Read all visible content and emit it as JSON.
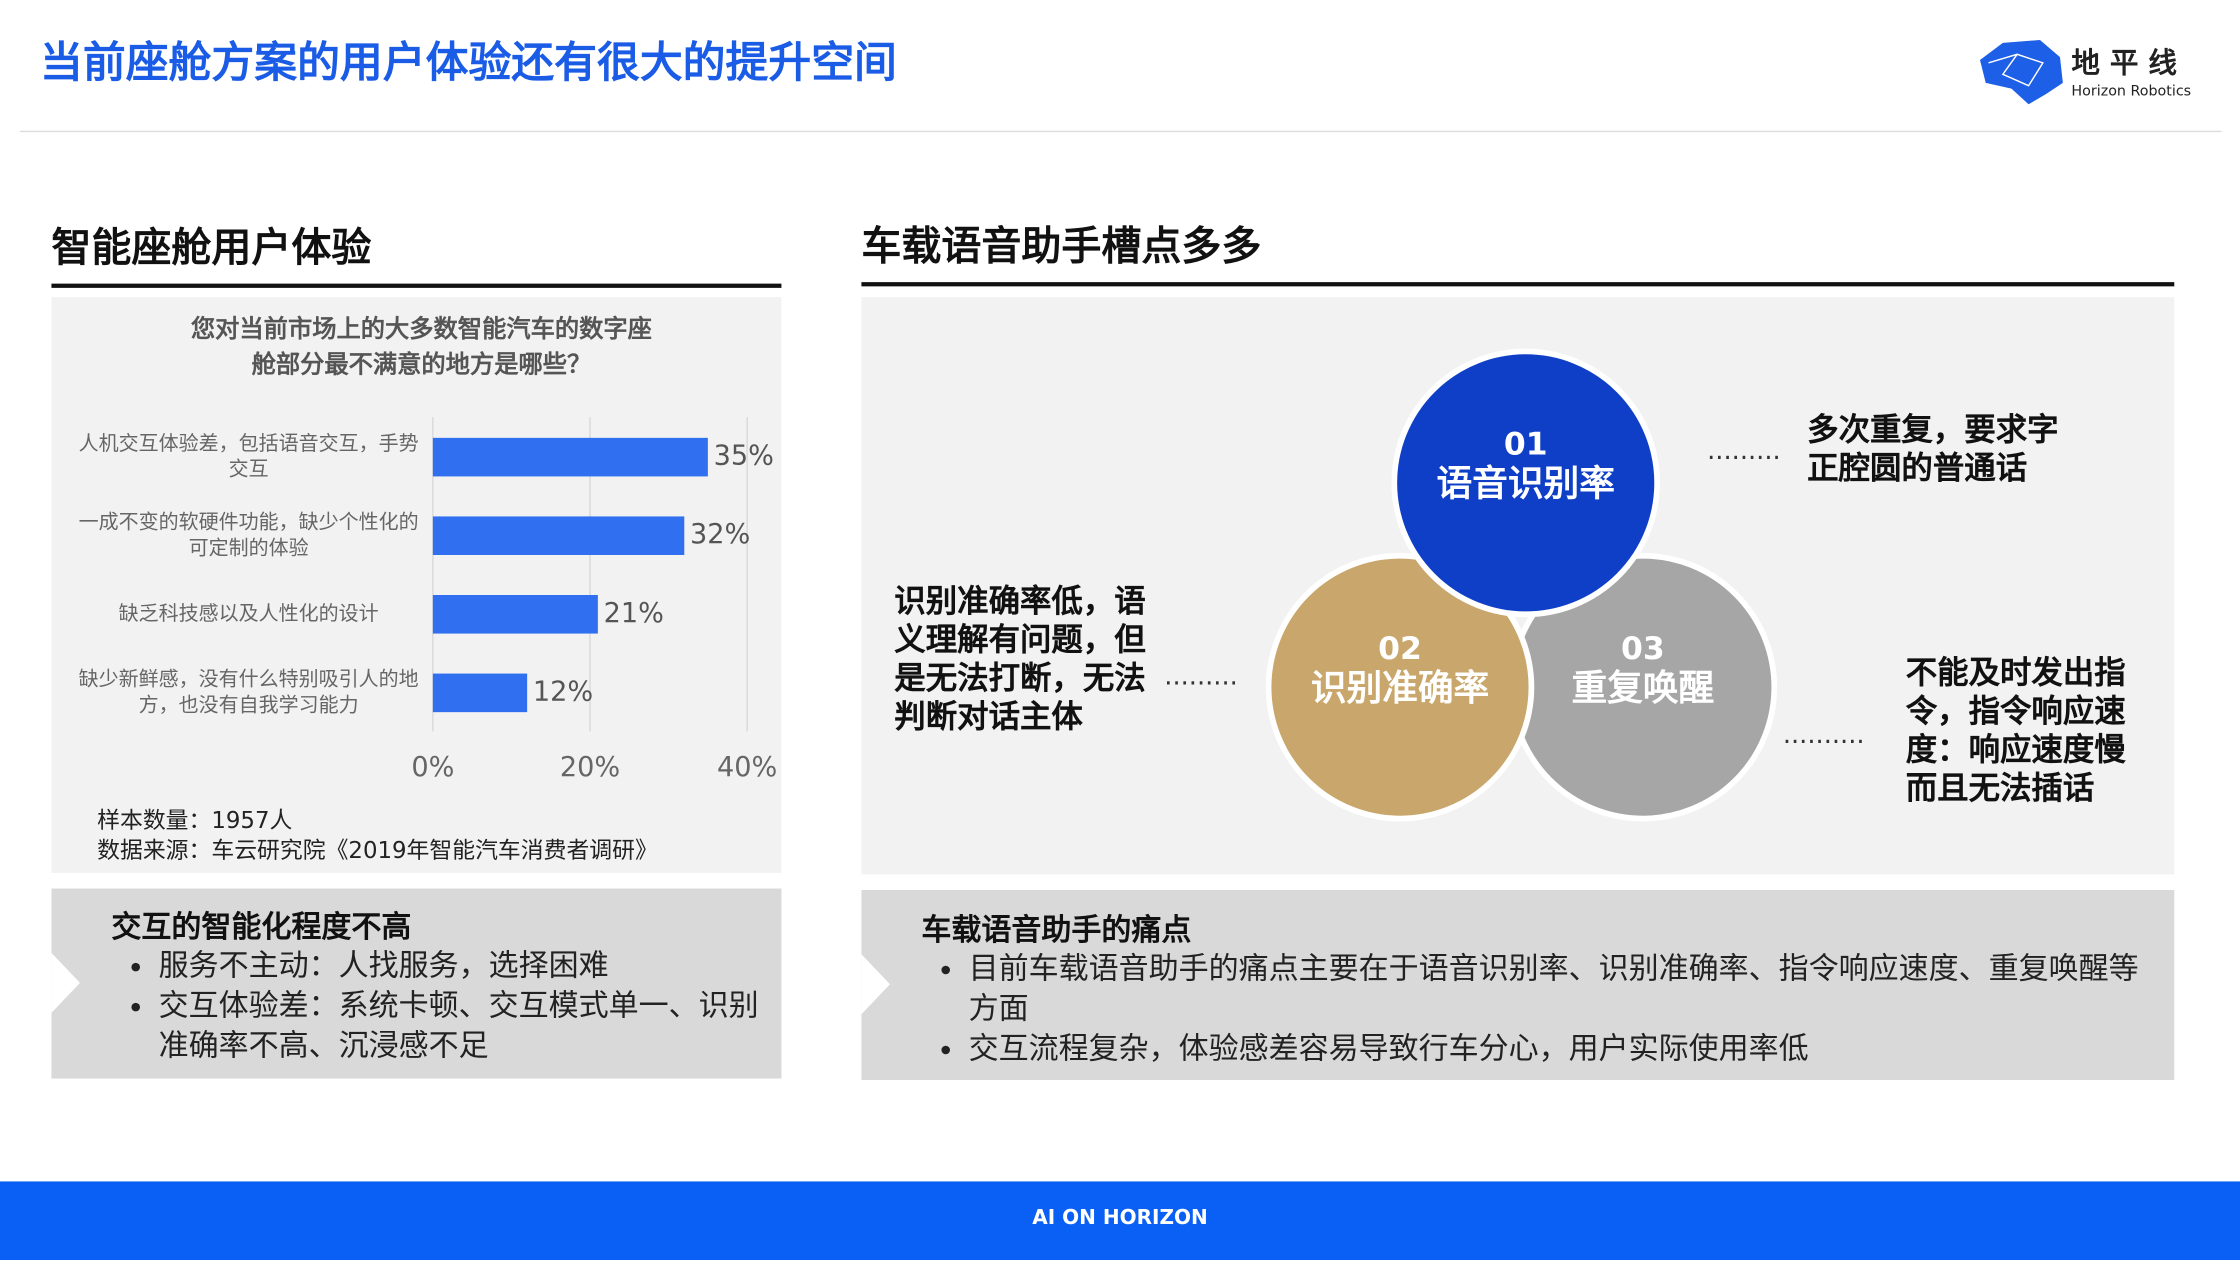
{
  "header": {
    "title": "当前座舱方案的用户体验还有很大的提升空间",
    "logo_cn": "地 平 线",
    "logo_en": "Horizon Robotics"
  },
  "left": {
    "heading": "智能座舱用户体验",
    "notes": [
      "样本数量：1957人",
      "数据来源：车云研究院《2019年智能汽车消费者调研》"
    ],
    "summary": {
      "heading": "交互的智能化程度不高",
      "bullets": [
        "服务不主动：人找服务，选择困难",
        "交互体验差：系统卡顿、交互模式单一、识别准确率不高、沉浸感不足"
      ]
    }
  },
  "chart_data": {
    "type": "bar",
    "orientation": "horizontal",
    "title": [
      "您对当前市场上的大多数智能汽车的数字座",
      "舱部分最不满意的地方是哪些？"
    ],
    "categories": [
      "人机交互体验差，包括语音交互，手势交互",
      "一成不变的软硬件功能，缺少个性化的可定制的体验",
      "缺乏科技感以及人性化的设计",
      "缺少新鲜感，没有什么特别吸引人的地方，也没有自我学习能力"
    ],
    "values": [
      35,
      32,
      21,
      12
    ],
    "value_labels": [
      "35%",
      "32%",
      "21%",
      "12%"
    ],
    "color": "#2f6ff0",
    "xlim": [
      0,
      40
    ],
    "xticks": [
      {
        "value": 0,
        "label": "0%"
      },
      {
        "value": 20,
        "label": "20%"
      },
      {
        "value": 40,
        "label": "40%"
      }
    ],
    "grid": true
  },
  "right": {
    "heading": "车载语音助手槽点多多",
    "circles": [
      {
        "number": "01",
        "label": "语音识别率",
        "note": "多次重复，要求字正腔圆的普通话"
      },
      {
        "number": "02",
        "label": "识别准确率",
        "note": "识别准确率低，语义理解有问题，但是无法打断，无法判断对话主体"
      },
      {
        "number": "03",
        "label": "重复唤醒",
        "note": "不能及时发出指令，指令响应速度：响应速度慢而且无法插话"
      }
    ],
    "summary": {
      "heading": "车载语音助手的痛点",
      "bullets": [
        "目前车载语音助手的痛点主要在于语音识别率、识别准确率、指令响应速度、重复唤醒等方面",
        "交互流程复杂，体验感差容易导致行车分心，用户实际使用率低"
      ]
    }
  },
  "footer": "AI ON HORIZON"
}
